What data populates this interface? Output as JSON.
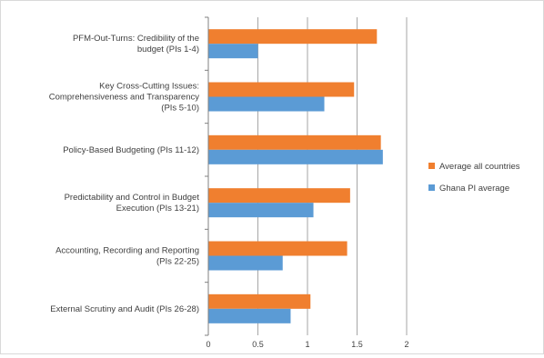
{
  "chart_data": {
    "type": "bar",
    "orientation": "horizontal",
    "categories": [
      [
        "PFM-Out-Turns: Credibility of the",
        "budget (PIs 1-4)"
      ],
      [
        "Key Cross-Cutting Issues:",
        "Comprehensiveness and Transparency",
        "(PIs 5-10)"
      ],
      [
        "Policy-Based Budgeting (PIs 11-12)"
      ],
      [
        "Predictability and Control in Budget",
        "Execution (PIs 13-21)"
      ],
      [
        "Accounting, Recording and Reporting",
        "(PIs 22-25)"
      ],
      [
        "External Scrutiny and Audit (PIs 26-28)"
      ]
    ],
    "series": [
      {
        "name": "Average all countries",
        "color": "#f07f2f",
        "values": [
          1.7,
          1.47,
          1.74,
          1.43,
          1.4,
          1.03
        ]
      },
      {
        "name": "Ghana PI average",
        "color": "#5b9bd5",
        "values": [
          0.5,
          1.17,
          1.76,
          1.06,
          0.75,
          0.83
        ]
      }
    ],
    "xlim": [
      0,
      2
    ],
    "xticks": [
      "0",
      "0.5",
      "1",
      "1.5",
      "2"
    ],
    "grid": true,
    "legend_position": "right",
    "title": "",
    "xlabel": "",
    "ylabel": ""
  }
}
